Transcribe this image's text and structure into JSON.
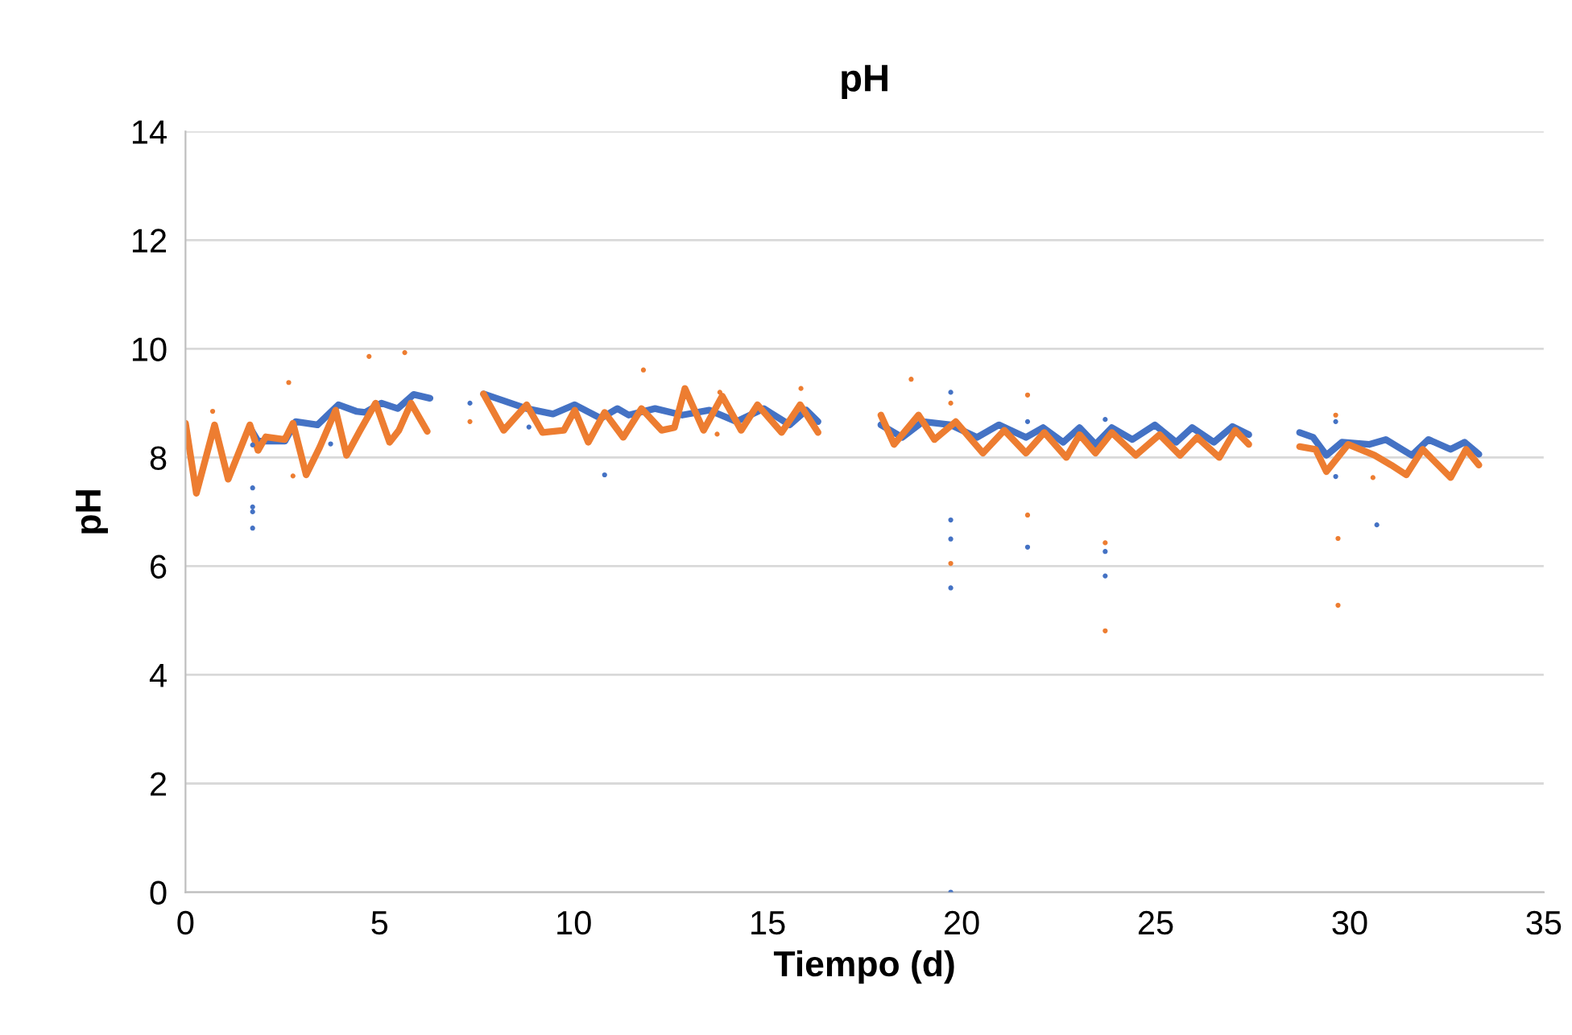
{
  "chart_data": {
    "type": "scatter",
    "title": "pH",
    "xlabel": "Tiempo (d)",
    "ylabel": "pH",
    "xlim": [
      0,
      35
    ],
    "xticks": [
      0,
      5,
      10,
      15,
      20,
      25,
      30,
      35
    ],
    "ylim": [
      0,
      14
    ],
    "yticks": [
      0,
      2,
      4,
      6,
      8,
      10,
      12,
      14
    ],
    "grid": "y",
    "legend": false,
    "series": [
      {
        "type": "line",
        "color": "#4472c4",
        "marker": "none",
        "x": [
          1.66,
          1.87,
          2.07,
          2.56,
          2.84,
          3.4,
          3.94,
          4.4,
          4.63,
          5.05,
          5.47,
          5.88,
          6.3,
          7.0,
          7.68,
          8.79,
          9.47,
          10.03,
          10.7,
          11.13,
          11.42,
          12.1,
          12.8,
          13.5,
          14.2,
          14.9,
          15.57,
          16.0,
          16.3,
          17.1,
          17.92,
          18.47,
          19.0,
          19.72,
          20.4,
          20.96,
          21.66,
          22.1,
          22.62,
          23.04,
          23.45,
          23.87,
          24.4,
          24.98,
          25.53,
          25.94,
          26.5,
          26.98,
          27.4,
          28.0,
          28.71,
          29.06,
          29.4,
          29.8,
          30.5,
          30.93,
          31.6,
          32.03,
          32.6,
          32.96,
          33.33
        ],
        "values": [
          8.55,
          8.3,
          8.3,
          8.3,
          8.66,
          8.6,
          8.97,
          8.85,
          8.83,
          9.0,
          8.9,
          9.16,
          9.09,
          null,
          9.17,
          8.9,
          8.8,
          8.97,
          8.72,
          8.9,
          8.78,
          8.9,
          8.78,
          8.87,
          8.66,
          8.9,
          8.6,
          8.87,
          8.66,
          null,
          8.6,
          8.37,
          8.66,
          8.6,
          8.37,
          8.6,
          8.37,
          8.55,
          8.28,
          8.55,
          8.24,
          8.55,
          8.33,
          8.6,
          8.28,
          8.55,
          8.28,
          8.57,
          8.42,
          null,
          8.46,
          8.37,
          8.04,
          8.28,
          8.24,
          8.33,
          8.04,
          8.33,
          8.15,
          8.28,
          8.06
        ]
      },
      {
        "type": "scatter",
        "color": "#4472c4",
        "marker": "circle",
        "x": [
          1.73,
          1.73,
          1.73,
          1.73,
          1.73,
          3.74,
          7.33,
          8.85,
          10.8,
          19.72,
          19.72,
          19.72,
          19.72,
          19.72,
          21.7,
          21.7,
          23.7,
          23.7,
          23.7,
          29.64,
          29.64,
          30.7
        ],
        "values": [
          8.23,
          7.44,
          7.09,
          7.0,
          6.7,
          8.25,
          9.0,
          8.56,
          7.68,
          9.2,
          6.85,
          6.5,
          5.6,
          0,
          8.66,
          6.35,
          8.7,
          6.27,
          5.82,
          8.66,
          7.65,
          6.76
        ]
      },
      {
        "type": "line",
        "color": "#ed7d31",
        "marker": "none",
        "x": [
          0,
          0.28,
          0.75,
          1.1,
          1.66,
          1.87,
          2.07,
          2.56,
          2.77,
          3.11,
          3.46,
          3.87,
          4.15,
          4.5,
          4.9,
          5.26,
          5.5,
          5.81,
          6.23,
          7.0,
          7.68,
          8.2,
          8.79,
          9.2,
          9.75,
          10.03,
          10.38,
          10.8,
          11.28,
          11.75,
          12.27,
          12.6,
          12.87,
          13.35,
          13.83,
          14.32,
          14.74,
          15.36,
          15.84,
          16.3,
          17.1,
          17.92,
          18.26,
          18.89,
          19.3,
          19.85,
          20.55,
          21.1,
          21.66,
          22.13,
          22.7,
          23.04,
          23.45,
          23.87,
          24.49,
          25.1,
          25.63,
          26.07,
          26.64,
          27.05,
          27.4,
          28.0,
          28.71,
          29.12,
          29.4,
          29.96,
          30.64,
          31.07,
          31.46,
          31.88,
          32.6,
          33.0,
          33.33
        ],
        "values": [
          8.63,
          7.34,
          8.6,
          7.6,
          8.6,
          8.13,
          8.38,
          8.33,
          8.63,
          7.68,
          8.19,
          8.87,
          8.04,
          8.5,
          9.0,
          8.28,
          8.5,
          9.0,
          8.48,
          null,
          9.17,
          8.5,
          8.97,
          8.46,
          8.5,
          8.87,
          8.28,
          8.83,
          8.37,
          8.9,
          8.5,
          8.55,
          9.27,
          8.5,
          9.13,
          8.5,
          8.97,
          8.46,
          8.97,
          8.46,
          null,
          8.78,
          8.24,
          8.78,
          8.33,
          8.66,
          8.08,
          8.5,
          8.08,
          8.46,
          8.0,
          8.42,
          8.08,
          8.46,
          8.04,
          8.42,
          8.04,
          8.37,
          8.0,
          8.5,
          8.24,
          null,
          8.2,
          8.15,
          7.74,
          8.24,
          8.04,
          7.86,
          7.68,
          8.15,
          7.63,
          8.15,
          7.86
        ]
      },
      {
        "type": "scatter",
        "color": "#ed7d31",
        "marker": "circle",
        "x": [
          0.7,
          2.66,
          2.77,
          4.73,
          5.65,
          7.33,
          11.8,
          13.7,
          13.77,
          15.86,
          18.7,
          19.72,
          19.72,
          21.7,
          21.7,
          23.7,
          23.7,
          29.64,
          29.7,
          29.7,
          30.6
        ],
        "values": [
          8.85,
          9.38,
          7.66,
          9.86,
          9.93,
          8.66,
          9.61,
          8.43,
          9.2,
          9.27,
          9.44,
          9.0,
          6.05,
          9.15,
          6.94,
          6.43,
          4.81,
          8.78,
          6.51,
          5.28,
          7.63
        ]
      }
    ]
  }
}
